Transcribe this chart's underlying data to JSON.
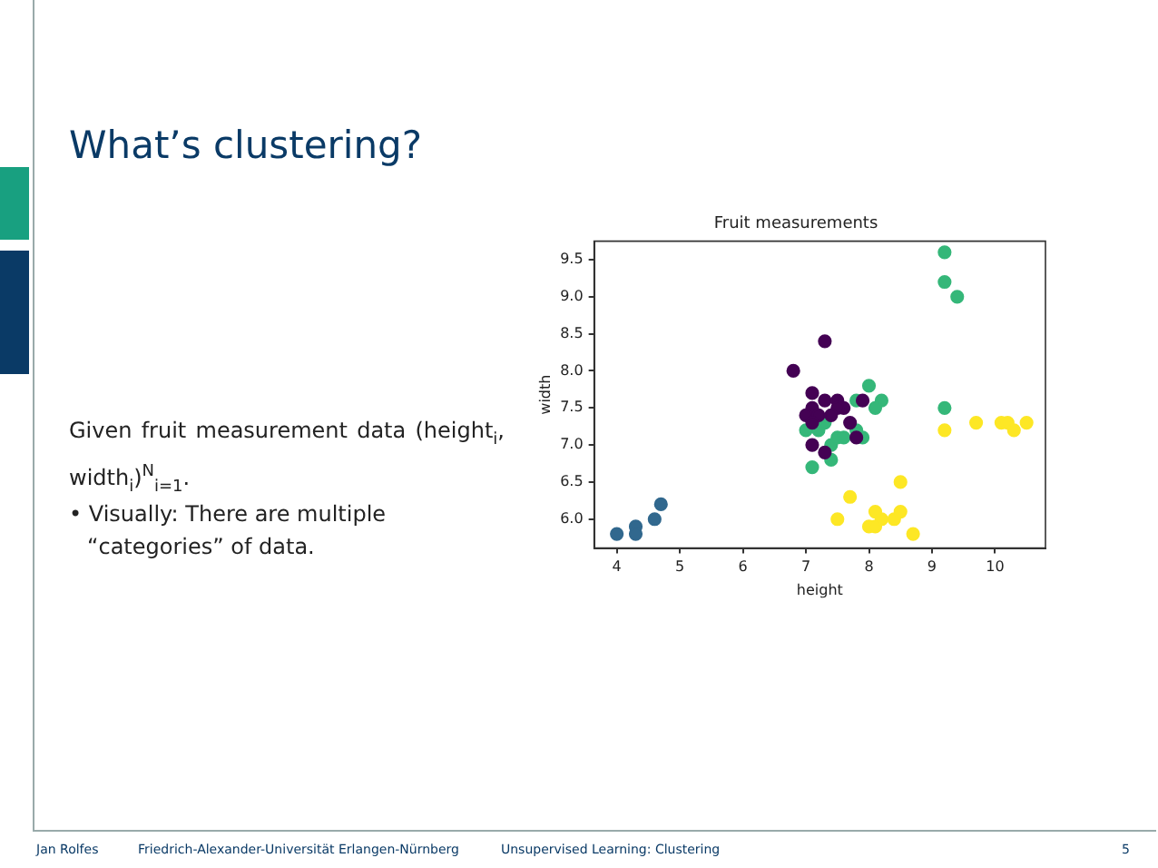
{
  "chart_data": {
    "type": "scatter",
    "title": "Fruit measurements",
    "xlabel": "height",
    "ylabel": "width",
    "xlim": [
      3.64,
      10.8
    ],
    "xticks": [
      4,
      5,
      6,
      7,
      8,
      9,
      10
    ],
    "ylim": [
      5.61,
      9.75
    ],
    "yticks": [
      {
        "value": 6,
        "label": "6.0"
      },
      {
        "value": 6.5,
        "label": "6.5"
      },
      {
        "value": 7,
        "label": "7.0"
      },
      {
        "value": 7.5,
        "label": "7.5"
      },
      {
        "value": 8,
        "label": "8.0"
      },
      {
        "value": 8.5,
        "label": "8.5"
      },
      {
        "value": 9,
        "label": "9.0"
      },
      {
        "value": 9.5,
        "label": "9.5"
      }
    ],
    "grid": false,
    "legend": false,
    "marker": "circle",
    "series": [
      {
        "color": "#31688e",
        "x": [
          4,
          4.3,
          4.3,
          4.6,
          4.7
        ],
        "values": [
          5.8,
          5.9,
          5.8,
          6.0,
          6.2
        ]
      },
      {
        "color": "#fde725",
        "x": [
          7.5,
          7.7,
          8.0,
          8.1,
          8.1,
          8.2,
          8.4,
          8.5,
          8.5,
          8.7,
          9.2,
          9.7,
          10.1,
          10.2,
          10.3,
          10.5
        ],
        "values": [
          6.0,
          6.3,
          5.9,
          5.9,
          6.1,
          6.0,
          6.0,
          6.1,
          6.5,
          5.8,
          7.2,
          7.3,
          7.3,
          7.3,
          7.2,
          7.3
        ]
      },
      {
        "color": "#35b779",
        "x": [
          9.2,
          9.2,
          9.4,
          9.2,
          8.0,
          8.2,
          8.1,
          7.8,
          7.8,
          7.9,
          7.0,
          7.2,
          7.3,
          7.1,
          7.4,
          7.4,
          7.5,
          7.6
        ],
        "values": [
          9.6,
          9.2,
          9.0,
          7.5,
          7.8,
          7.6,
          7.5,
          7.6,
          7.2,
          7.1,
          7.2,
          7.2,
          7.3,
          6.7,
          6.8,
          7.0,
          7.1,
          7.1
        ]
      },
      {
        "color": "#440154",
        "x": [
          7.3,
          6.8,
          7.1,
          7.3,
          7.5,
          7.6,
          7.5,
          7.1,
          7.0,
          7.2,
          7.4,
          7.1,
          7.7,
          7.1,
          7.3,
          7.9,
          7.8
        ],
        "values": [
          8.4,
          8.0,
          7.7,
          7.6,
          7.6,
          7.5,
          7.5,
          7.5,
          7.4,
          7.4,
          7.4,
          7.3,
          7.3,
          7.0,
          6.9,
          7.6,
          7.1
        ]
      }
    ],
    "annotations": [
      "What’s clustering?",
      "Given fruit measurement data (height$_{i}$, width$_{i}$)$^{N}$$_{i=1}$.",
      "• Visually: There are multiple “categories” of data.",
      "Jan Rolfes",
      "Friedrich-Alexander-Universität Erlangen-Nürnberg",
      "Unsupervised Learning: Clustering",
      "5"
    ]
  }
}
